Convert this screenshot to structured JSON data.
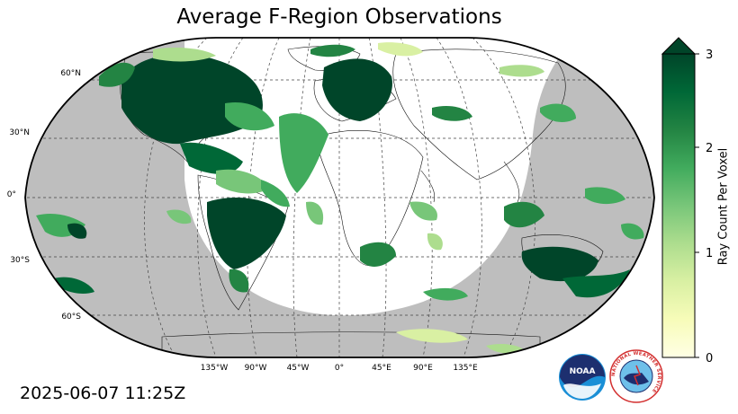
{
  "title": "Average F-Region Observations",
  "timestamp": "2025-06-07 11:25Z",
  "map": {
    "projection": "robinson",
    "background_color": "#bebebe",
    "daylight_color": "#ffffff",
    "lat_labels": [
      "60°N",
      "30°N",
      "0°",
      "30°S",
      "60°S"
    ],
    "lon_labels": [
      "135°W",
      "90°W",
      "45°W",
      "0°",
      "45°E",
      "90°E",
      "135°E"
    ]
  },
  "colorbar": {
    "label": "Ray Count Per Voxel",
    "ticks": [
      "0",
      "1",
      "2",
      "3"
    ],
    "min": 0,
    "max": 3,
    "extend": "max",
    "colormap": "YlGn",
    "colors": [
      "#ffffe5",
      "#f7fcb9",
      "#d9f0a3",
      "#addd8e",
      "#78c679",
      "#41ab5d",
      "#238443",
      "#006837",
      "#004529"
    ]
  },
  "logos": {
    "noaa_text": "NOAA",
    "nws_text": "NATIONAL WEATHER SERVICE"
  }
}
